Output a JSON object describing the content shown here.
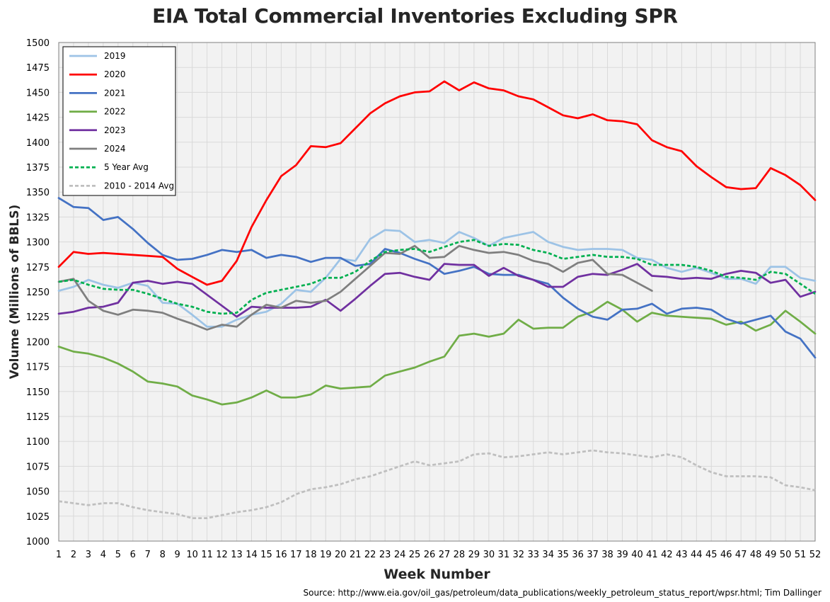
{
  "chart_data": {
    "type": "line",
    "title": "EIA Total Commercial Inventories Excluding SPR",
    "xlabel": "Week Number",
    "ylabel": "Volume (Millions of BBLS)",
    "source": "Source: http://www.eia.gov/oil_gas/petroleum/data_publications/weekly_petroleum_status_report/wpsr.html; Tim Dallinger",
    "xlim": [
      1,
      52
    ],
    "ylim": [
      1000,
      1500
    ],
    "ytick_step": 25,
    "grid": true,
    "legend_position": "top-left",
    "x": [
      1,
      2,
      3,
      4,
      5,
      6,
      7,
      8,
      9,
      10,
      11,
      12,
      13,
      14,
      15,
      16,
      17,
      18,
      19,
      20,
      21,
      22,
      23,
      24,
      25,
      26,
      27,
      28,
      29,
      30,
      31,
      32,
      33,
      34,
      35,
      36,
      37,
      38,
      39,
      40,
      41,
      42,
      43,
      44,
      45,
      46,
      47,
      48,
      49,
      50,
      51,
      52
    ],
    "series": [
      {
        "name": "2019",
        "color": "#9dc3e6",
        "dash": "solid",
        "values": [
          1251,
          1255,
          1262,
          1257,
          1254,
          1259,
          1256,
          1239,
          1238,
          1227,
          1215,
          1215,
          1222,
          1227,
          1230,
          1238,
          1252,
          1250,
          1264,
          1283,
          1281,
          1303,
          1312,
          1311,
          1300,
          1302,
          1299,
          1310,
          1304,
          1296,
          1304,
          1307,
          1310,
          1300,
          1295,
          1292,
          1293,
          1293,
          1292,
          1284,
          1282,
          1274,
          1270,
          1274,
          1269,
          1263,
          1263,
          1258,
          1275,
          1275,
          1264,
          1261
        ]
      },
      {
        "name": "2020",
        "color": "#ff0000",
        "dash": "solid",
        "values": [
          1275,
          1290,
          1288,
          1289,
          1288,
          1287,
          1286,
          1285,
          1273,
          1265,
          1257,
          1261,
          1281,
          1315,
          1342,
          1366,
          1377,
          1396,
          1395,
          1399,
          1414,
          1429,
          1439,
          1446,
          1450,
          1451,
          1461,
          1452,
          1460,
          1454,
          1452,
          1446,
          1443,
          1435,
          1427,
          1424,
          1428,
          1422,
          1421,
          1418,
          1402,
          1395,
          1391,
          1376,
          1365,
          1355,
          1353,
          1354,
          1374,
          1367,
          1357,
          1342
        ]
      },
      {
        "name": "2021",
        "color": "#4472c4",
        "dash": "solid",
        "values": [
          1344,
          1335,
          1334,
          1322,
          1325,
          1313,
          1299,
          1287,
          1282,
          1283,
          1287,
          1292,
          1290,
          1292,
          1284,
          1287,
          1285,
          1280,
          1284,
          1284,
          1276,
          1278,
          1293,
          1289,
          1283,
          1278,
          1268,
          1271,
          1275,
          1268,
          1267,
          1267,
          1262,
          1258,
          1244,
          1233,
          1225,
          1222,
          1232,
          1233,
          1238,
          1228,
          1233,
          1234,
          1232,
          1223,
          1218,
          1222,
          1226,
          1210,
          1203,
          1184
        ]
      },
      {
        "name": "2022",
        "color": "#70ad47",
        "dash": "solid",
        "values": [
          1195,
          1190,
          1188,
          1184,
          1178,
          1170,
          1160,
          1158,
          1155,
          1146,
          1142,
          1137,
          1139,
          1144,
          1151,
          1144,
          1144,
          1147,
          1156,
          1153,
          1154,
          1155,
          1166,
          1170,
          1174,
          1180,
          1185,
          1206,
          1208,
          1205,
          1208,
          1222,
          1213,
          1214,
          1214,
          1225,
          1230,
          1240,
          1232,
          1220,
          1229,
          1226,
          1225,
          1224,
          1223,
          1217,
          1220,
          1211,
          1217,
          1231,
          1220,
          1208
        ]
      },
      {
        "name": "2023",
        "color": "#7030a0",
        "dash": "solid",
        "values": [
          1228,
          1230,
          1234,
          1235,
          1239,
          1259,
          1261,
          1258,
          1260,
          1258,
          1247,
          1236,
          1225,
          1235,
          1234,
          1234,
          1234,
          1235,
          1242,
          1231,
          1243,
          1256,
          1268,
          1269,
          1265,
          1262,
          1278,
          1277,
          1277,
          1266,
          1274,
          1266,
          1262,
          1255,
          1255,
          1265,
          1268,
          1267,
          1272,
          1278,
          1266,
          1265,
          1263,
          1264,
          1263,
          1268,
          1271,
          1269,
          1259,
          1262,
          1245,
          1250
        ]
      },
      {
        "name": "2024",
        "color": "#7f7f7f",
        "dash": "solid",
        "values": [
          1260,
          1263,
          1241,
          1231,
          1227,
          1232,
          1231,
          1229,
          1223,
          1218,
          1212,
          1217,
          1215,
          1227,
          1237,
          1234,
          1241,
          1239,
          1241,
          1250,
          1263,
          1276,
          1289,
          1288,
          1296,
          1284,
          1285,
          1296,
          1292,
          1289,
          1290,
          1287,
          1281,
          1278,
          1270,
          1279,
          1282,
          1268,
          1267,
          1259,
          1251,
          null,
          null,
          null,
          null,
          null,
          null,
          null,
          null,
          null,
          null,
          null
        ]
      },
      {
        "name": "5 Year Avg",
        "color": "#00b050",
        "dash": "dashed",
        "values": [
          1260,
          1262,
          1257,
          1253,
          1252,
          1252,
          1248,
          1243,
          1238,
          1235,
          1230,
          1228,
          1229,
          1242,
          1249,
          1252,
          1255,
          1258,
          1264,
          1264,
          1270,
          1281,
          1290,
          1292,
          1293,
          1290,
          1295,
          1300,
          1302,
          1296,
          1298,
          1297,
          1292,
          1289,
          1283,
          1285,
          1287,
          1285,
          1285,
          1283,
          1277,
          1277,
          1277,
          1275,
          1271,
          1265,
          1264,
          1262,
          1270,
          1268,
          1258,
          1248
        ]
      },
      {
        "name": "2010 - 2014 Avg",
        "color": "#bfbfbf",
        "dash": "dashed",
        "values": [
          1040,
          1038,
          1036,
          1038,
          1038,
          1034,
          1031,
          1029,
          1027,
          1023,
          1023,
          1026,
          1029,
          1031,
          1034,
          1039,
          1047,
          1052,
          1054,
          1057,
          1062,
          1065,
          1070,
          1075,
          1080,
          1076,
          1078,
          1080,
          1087,
          1088,
          1084,
          1085,
          1087,
          1089,
          1087,
          1089,
          1091,
          1089,
          1088,
          1086,
          1084,
          1087,
          1084,
          1076,
          1069,
          1065,
          1065,
          1065,
          1064,
          1056,
          1054,
          1051
        ]
      }
    ]
  }
}
